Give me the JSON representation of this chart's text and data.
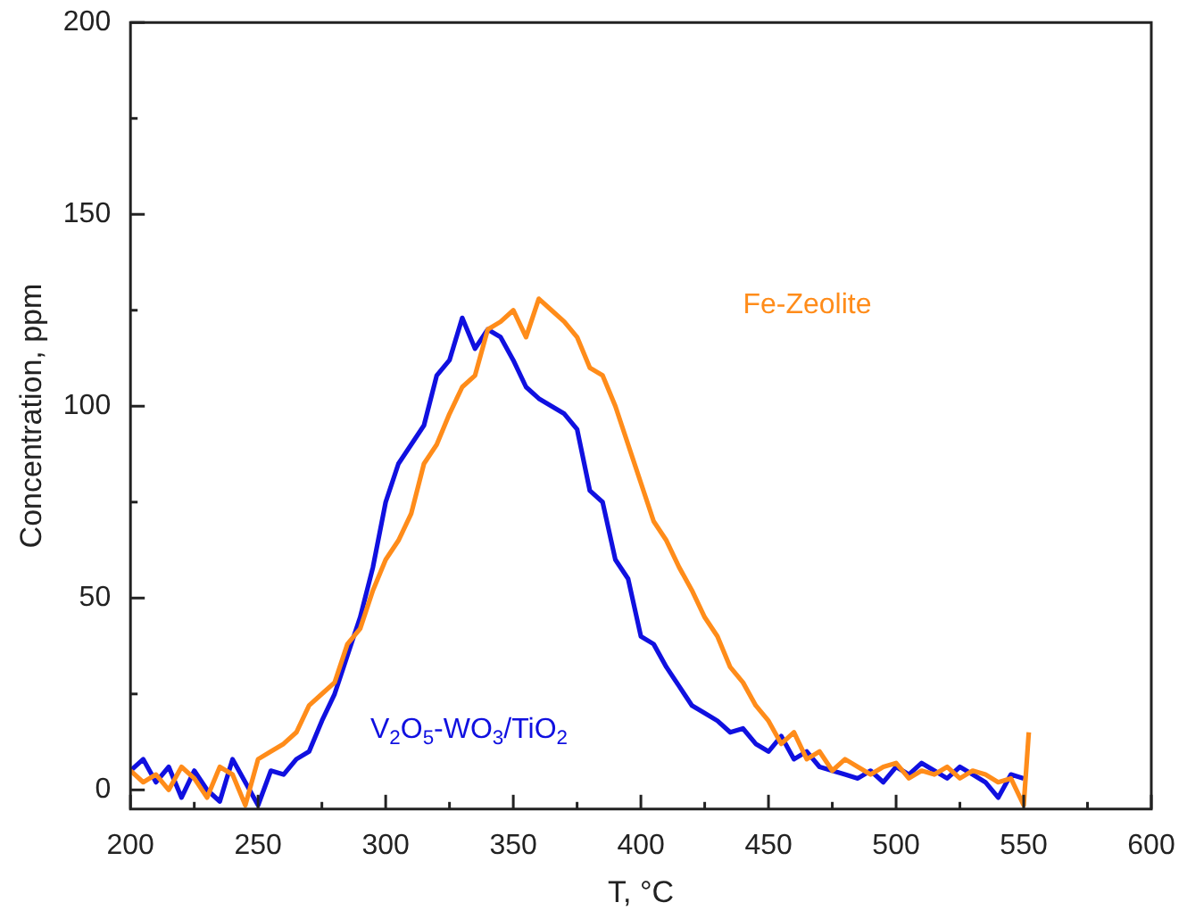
{
  "chart_data": {
    "type": "line",
    "xlabel": "T, °C",
    "ylabel": "Concentration, ppm",
    "xlim": [
      200,
      600
    ],
    "ylim": [
      -5,
      200
    ],
    "xticks": [
      200,
      {
        "value": 225,
        "label": null
      },
      250,
      {
        "value": 275,
        "label": null
      },
      300,
      {
        "value": 325,
        "label": null
      },
      350,
      {
        "value": 375,
        "label": null
      },
      400,
      {
        "value": 425,
        "label": null
      },
      450,
      {
        "value": 475,
        "label": null
      },
      500,
      {
        "value": 525,
        "label": null
      },
      550,
      {
        "value": 575,
        "label": null
      },
      600
    ],
    "yticks": [
      0,
      {
        "value": 25,
        "label": null
      },
      50,
      {
        "value": 75,
        "label": null
      },
      100,
      {
        "value": 125,
        "label": null
      },
      150,
      {
        "value": 175,
        "label": null
      },
      200
    ],
    "grid": false,
    "legend": false,
    "marker": "none",
    "line_style": "solid",
    "series": [
      {
        "name": "Fe-Zeolite",
        "color": "#ff8c1a",
        "x": [
          200,
          205,
          210,
          215,
          220,
          225,
          230,
          235,
          240,
          245,
          250,
          255,
          260,
          265,
          270,
          275,
          280,
          285,
          290,
          295,
          300,
          305,
          310,
          315,
          320,
          325,
          330,
          335,
          340,
          345,
          350,
          355,
          360,
          365,
          370,
          375,
          380,
          385,
          390,
          395,
          400,
          405,
          410,
          415,
          420,
          425,
          430,
          435,
          440,
          445,
          450,
          455,
          460,
          465,
          470,
          475,
          480,
          485,
          490,
          495,
          500,
          505,
          510,
          515,
          520,
          525,
          530,
          535,
          540,
          545,
          550,
          552
        ],
        "values": [
          5,
          2,
          4,
          0,
          6,
          3,
          -2,
          6,
          4,
          -4,
          8,
          10,
          12,
          15,
          22,
          25,
          28,
          38,
          42,
          52,
          60,
          65,
          72,
          85,
          90,
          98,
          105,
          108,
          120,
          122,
          125,
          118,
          128,
          125,
          122,
          118,
          110,
          108,
          100,
          90,
          80,
          70,
          65,
          58,
          52,
          45,
          40,
          32,
          28,
          22,
          18,
          12,
          15,
          8,
          10,
          5,
          8,
          6,
          4,
          6,
          7,
          3,
          5,
          4,
          6,
          3,
          5,
          4,
          2,
          3,
          -4,
          15
        ]
      },
      {
        "name": "V$_{2}$O$_{5}$-WO$_{3}$/TiO$_{2}$",
        "color": "#1010e0",
        "x": [
          200,
          205,
          210,
          215,
          220,
          225,
          230,
          235,
          240,
          245,
          250,
          255,
          260,
          265,
          270,
          275,
          280,
          285,
          290,
          295,
          300,
          305,
          310,
          315,
          320,
          325,
          330,
          335,
          340,
          345,
          350,
          355,
          360,
          365,
          370,
          375,
          380,
          385,
          390,
          395,
          400,
          405,
          410,
          415,
          420,
          425,
          430,
          435,
          440,
          445,
          450,
          455,
          460,
          465,
          470,
          475,
          480,
          485,
          490,
          495,
          500,
          505,
          510,
          515,
          520,
          525,
          530,
          535,
          540,
          545,
          550
        ],
        "values": [
          5,
          8,
          2,
          6,
          -2,
          5,
          0,
          -3,
          8,
          2,
          -4,
          5,
          4,
          8,
          10,
          18,
          25,
          35,
          45,
          58,
          75,
          85,
          90,
          95,
          108,
          112,
          123,
          115,
          120,
          118,
          112,
          105,
          102,
          100,
          98,
          94,
          78,
          75,
          60,
          55,
          40,
          38,
          32,
          27,
          22,
          20,
          18,
          15,
          16,
          12,
          10,
          14,
          8,
          10,
          6,
          5,
          4,
          3,
          5,
          2,
          6,
          4,
          7,
          5,
          3,
          6,
          4,
          2,
          -2,
          4,
          3
        ]
      }
    ]
  }
}
